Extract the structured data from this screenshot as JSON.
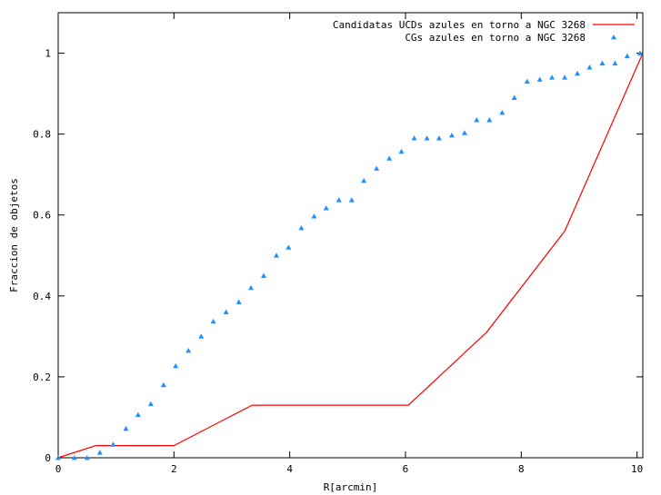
{
  "chart_data": {
    "type": "line",
    "title": "",
    "xlabel": "R[arcmin]",
    "ylabel": "Fraccion de objetos",
    "xlim": [
      0,
      10.1
    ],
    "ylim": [
      0,
      1.1
    ],
    "x_ticks": [
      0,
      2,
      4,
      6,
      8,
      10
    ],
    "y_ticks": [
      0,
      0.2,
      0.4,
      0.6,
      0.8,
      1
    ],
    "x_tick_labels": [
      "0",
      "2",
      "4",
      "6",
      "8",
      "10"
    ],
    "y_tick_labels": [
      "0",
      "0.2",
      "0.4",
      "0.6",
      "0.8",
      "1"
    ],
    "legend_position": "top-right",
    "grid": false,
    "series": [
      {
        "name": "Candidatas UCDs azules en torno a NGC 3268",
        "style": "line",
        "color": "#ff0000",
        "x": [
          0,
          0.65,
          2.0,
          3.35,
          6.05,
          7.4,
          8.75,
          10.1
        ],
        "y": [
          0,
          0.03,
          0.03,
          0.13,
          0.13,
          0.31,
          0.56,
          1.0
        ]
      },
      {
        "name": "CGs azules en torno a NGC 3268",
        "style": "points",
        "color": "#1e90ff",
        "x": [
          0.0,
          0.28,
          0.5,
          0.72,
          0.95,
          1.17,
          1.38,
          1.6,
          1.82,
          2.03,
          2.25,
          2.47,
          2.68,
          2.9,
          3.12,
          3.33,
          3.55,
          3.77,
          3.98,
          4.2,
          4.42,
          4.63,
          4.85,
          5.07,
          5.28,
          5.5,
          5.72,
          5.93,
          6.15,
          6.37,
          6.58,
          6.8,
          7.02,
          7.23,
          7.45,
          7.67,
          7.88,
          8.1,
          8.32,
          8.53,
          8.75,
          8.97,
          9.18,
          9.4,
          9.62,
          9.83,
          10.05
        ],
        "y": [
          0.0,
          0.0,
          0.0,
          0.013,
          0.033,
          0.072,
          0.106,
          0.133,
          0.18,
          0.227,
          0.265,
          0.3,
          0.337,
          0.36,
          0.385,
          0.42,
          0.45,
          0.5,
          0.52,
          0.568,
          0.597,
          0.617,
          0.637,
          0.637,
          0.685,
          0.715,
          0.74,
          0.757,
          0.79,
          0.79,
          0.79,
          0.797,
          0.803,
          0.835,
          0.835,
          0.853,
          0.89,
          0.93,
          0.935,
          0.94,
          0.94,
          0.95,
          0.965,
          0.975,
          0.975,
          0.993,
          1.0
        ]
      }
    ]
  }
}
